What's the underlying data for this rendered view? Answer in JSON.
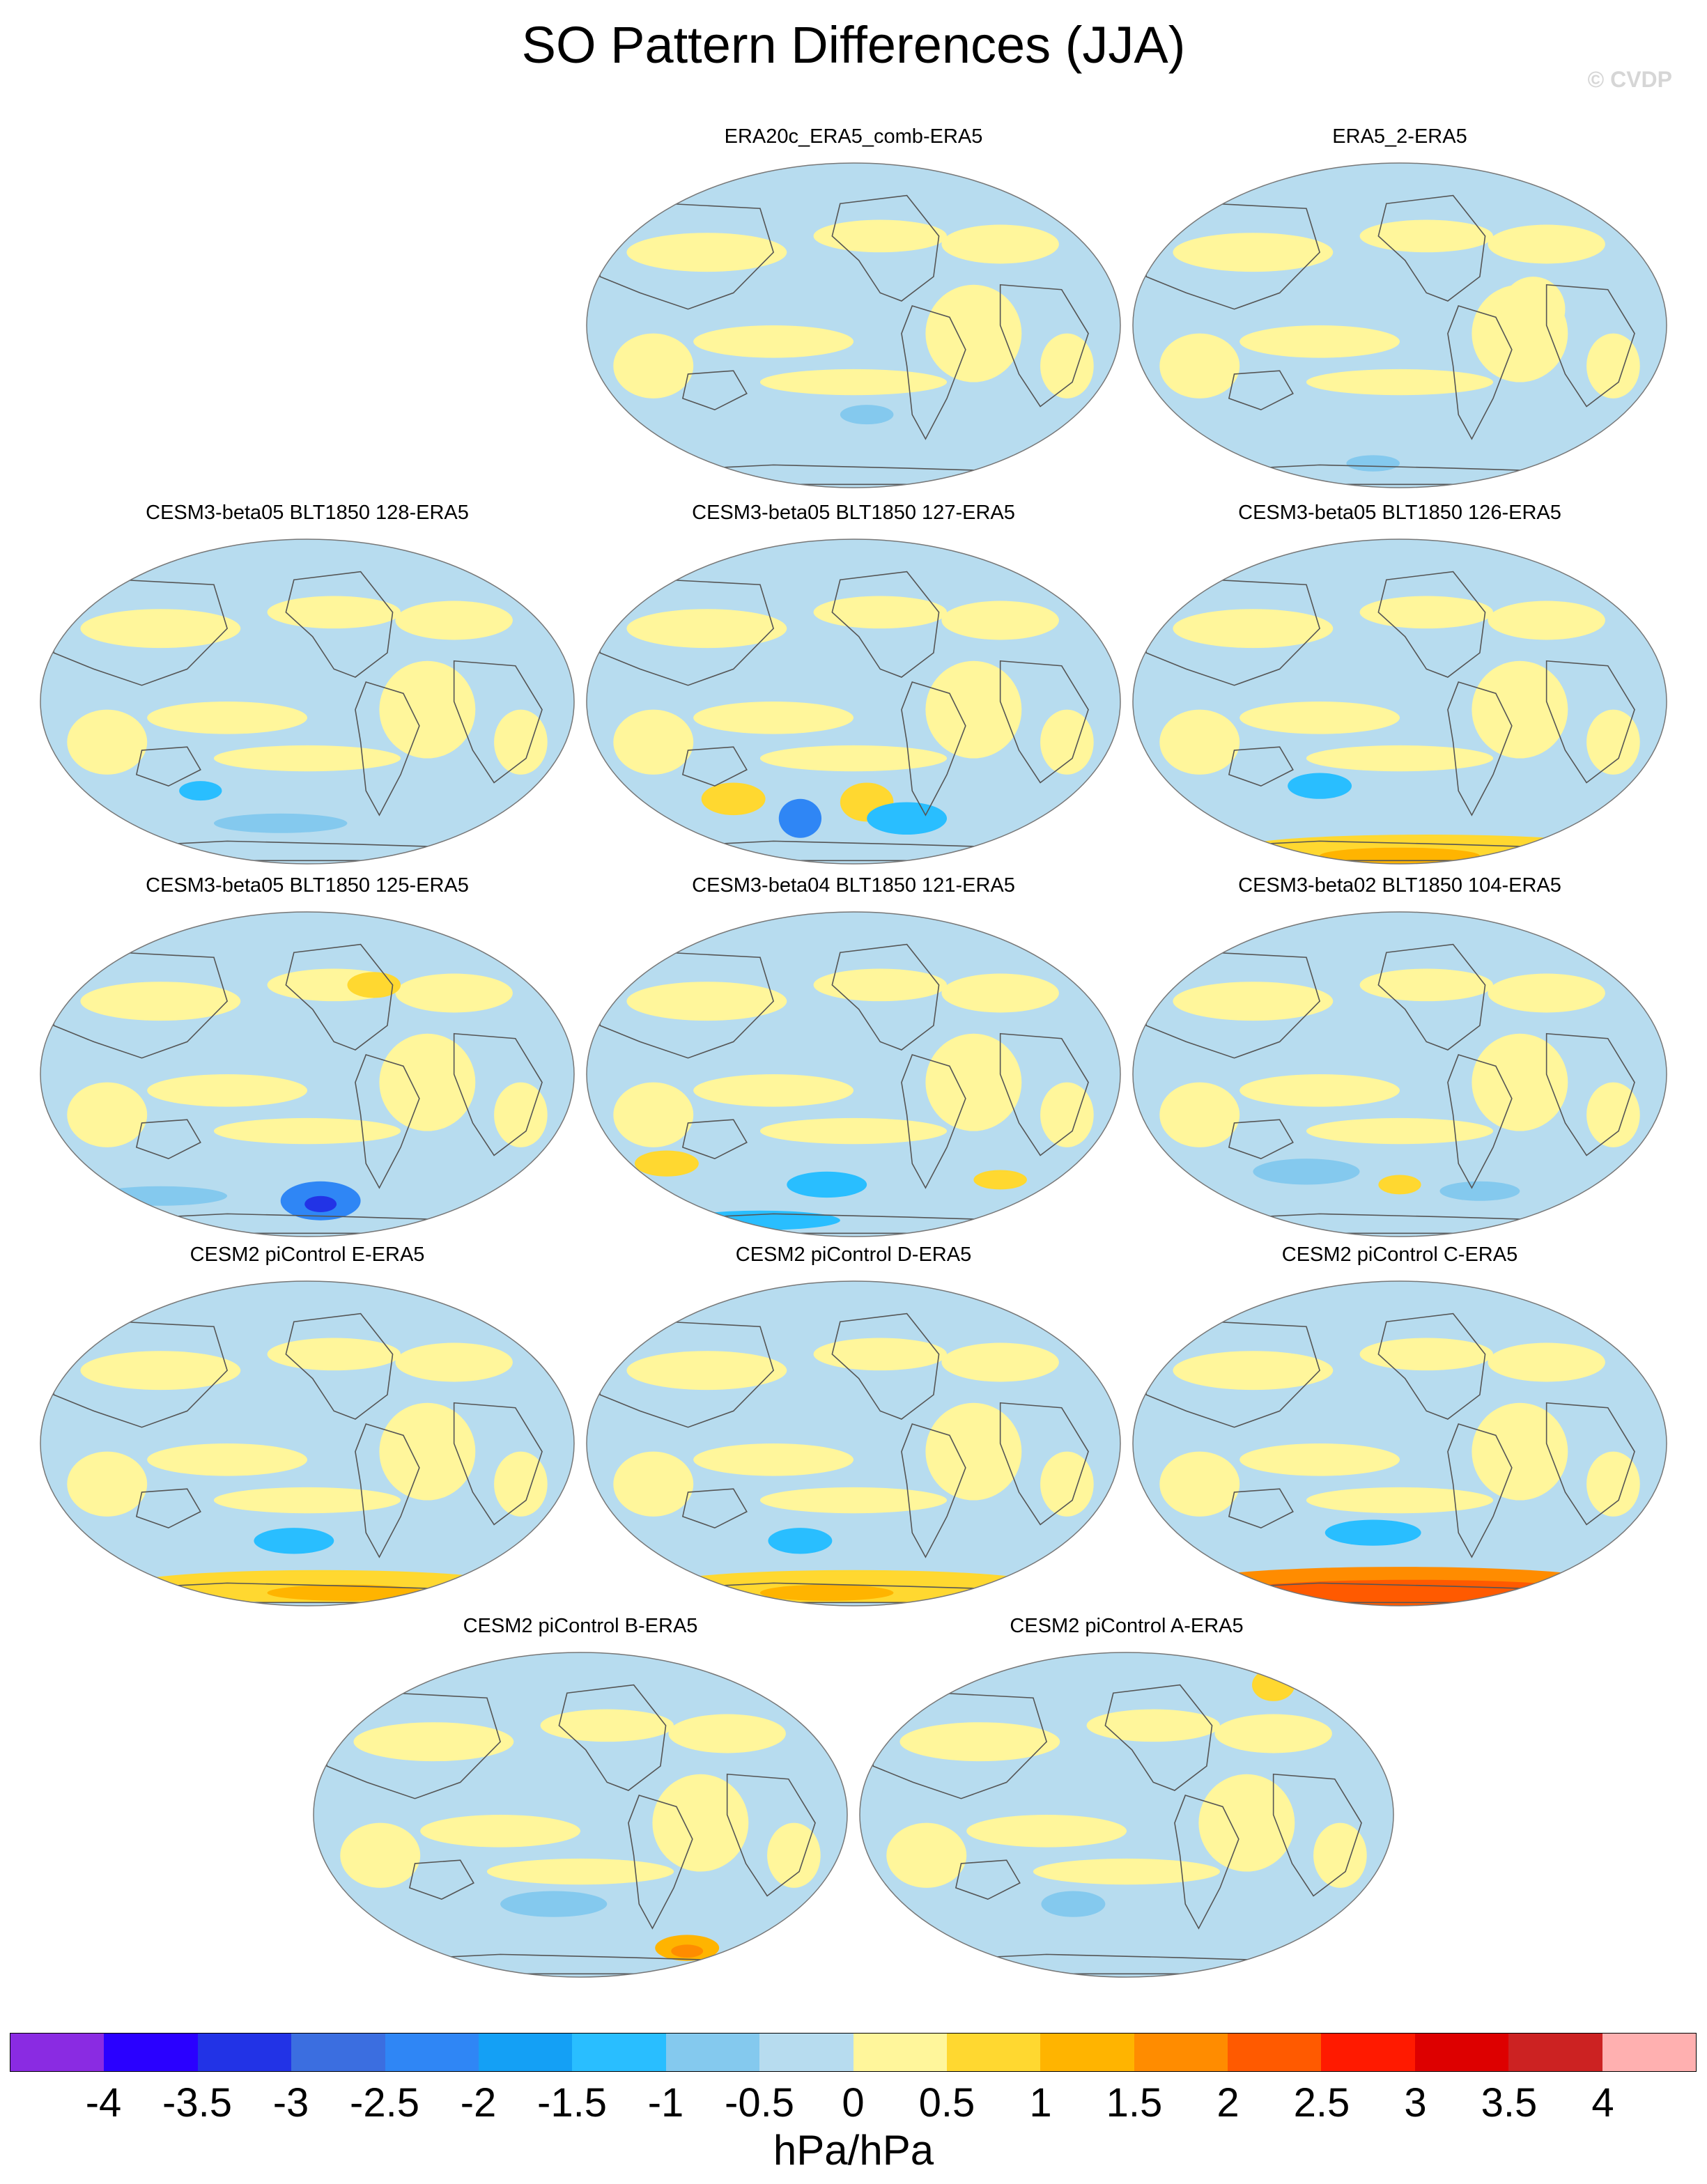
{
  "title": "SO Pattern Differences (JJA)",
  "watermark": "© CVDP",
  "colors": {
    "ocean_blue": "#b7dcef",
    "pale_yellow": "#fff69b",
    "coast_line": "#555555"
  },
  "panels": [
    {
      "title": "ERA20c_ERA5_comb-ERA5",
      "variant": 0
    },
    {
      "title": "ERA5_2-ERA5",
      "variant": 1
    },
    {
      "title": "CESM3-beta05 BLT1850 128-ERA5",
      "variant": 2
    },
    {
      "title": "CESM3-beta05 BLT1850 127-ERA5",
      "variant": 3
    },
    {
      "title": "CESM3-beta05 BLT1850 126-ERA5",
      "variant": 4
    },
    {
      "title": "CESM3-beta05 BLT1850 125-ERA5",
      "variant": 5
    },
    {
      "title": "CESM3-beta04 BLT1850 121-ERA5",
      "variant": 6
    },
    {
      "title": "CESM3-beta02 BLT1850 104-ERA5",
      "variant": 7
    },
    {
      "title": "CESM2 piControl E-ERA5",
      "variant": 8
    },
    {
      "title": "CESM2 piControl D-ERA5",
      "variant": 9
    },
    {
      "title": "CESM2 piControl C-ERA5",
      "variant": 10
    },
    {
      "title": "CESM2 piControl B-ERA5",
      "variant": 11
    },
    {
      "title": "CESM2 piControl A-ERA5",
      "variant": 12
    }
  ],
  "colorbar": {
    "colors": [
      "#8a2be2",
      "#2a00ff",
      "#2233e6",
      "#3b6ee0",
      "#2f86f5",
      "#14a0f5",
      "#29beff",
      "#84c9ee",
      "#b7dcef",
      "#fff69b",
      "#ffd830",
      "#ffb400",
      "#ff8c00",
      "#ff5a00",
      "#ff1a00",
      "#dd0000",
      "#cc2222",
      "#ffb0b0"
    ],
    "ticks": [
      "-4",
      "-3.5",
      "-3",
      "-2.5",
      "-2",
      "-1.5",
      "-1",
      "-0.5",
      "0",
      "0.5",
      "1",
      "1.5",
      "2",
      "2.5",
      "3",
      "3.5",
      "4"
    ],
    "units": "hPa/hPa"
  }
}
